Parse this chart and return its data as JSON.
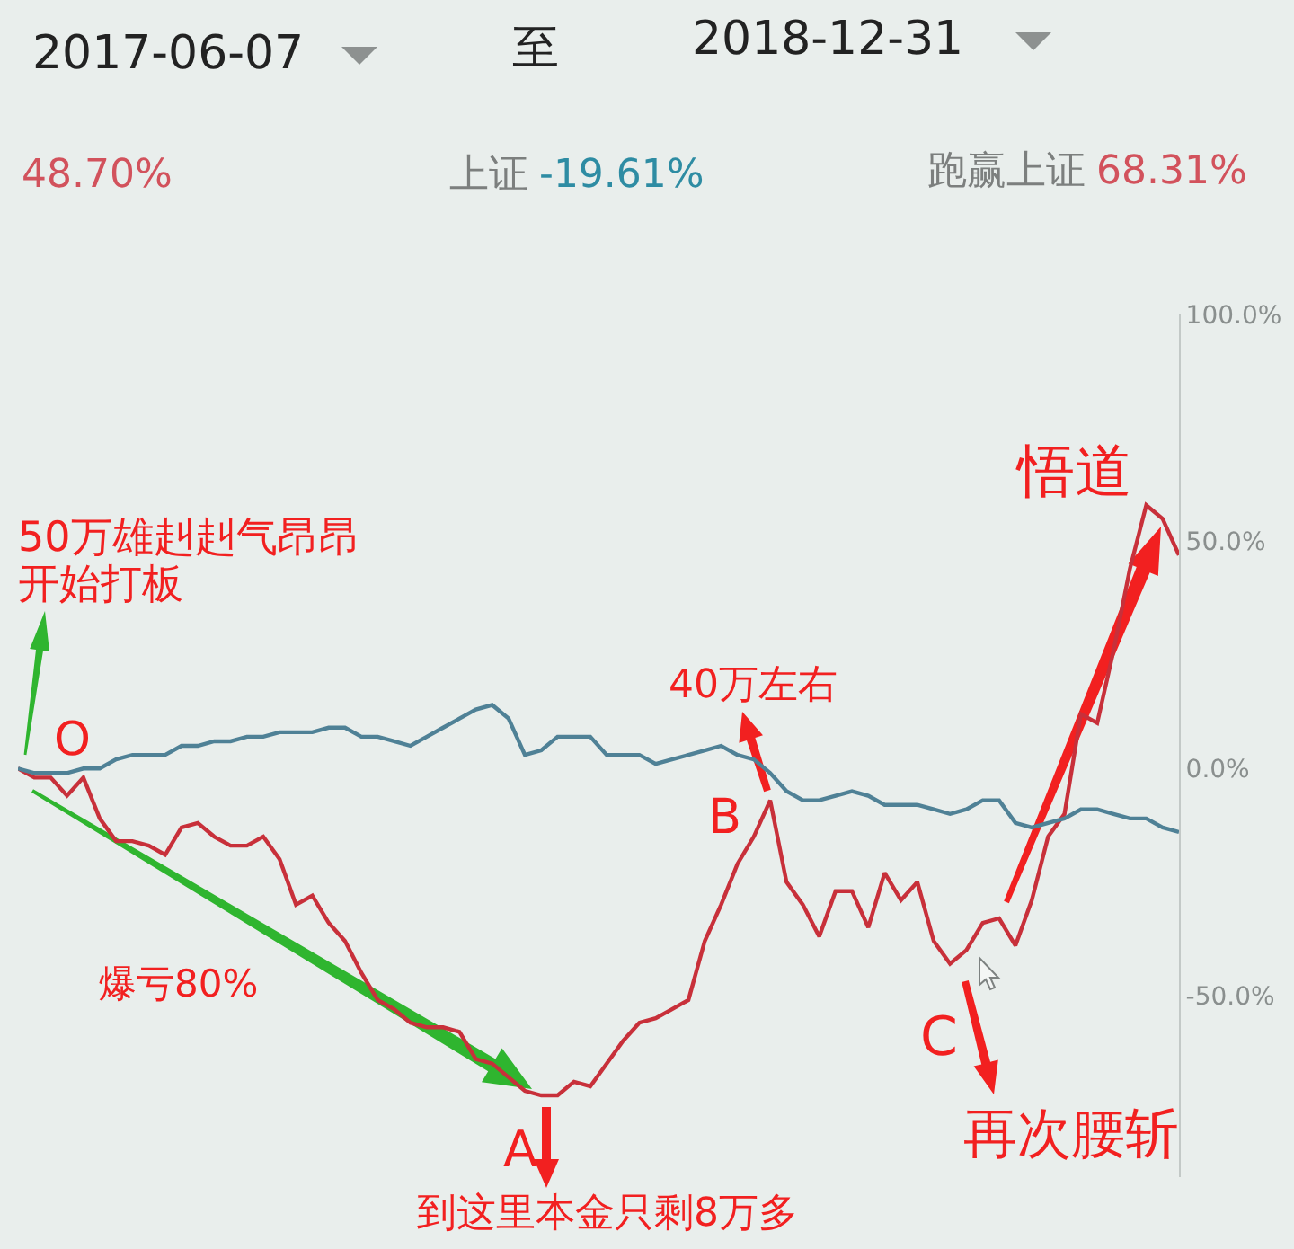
{
  "chart_data": {
    "type": "line",
    "categories": [
      null,
      null,
      null,
      null,
      null,
      null,
      null,
      null,
      null,
      null,
      null,
      null,
      null,
      null,
      null,
      null,
      null,
      null,
      null,
      null,
      null,
      null,
      null,
      null,
      null,
      null,
      null,
      null,
      null,
      null,
      null,
      null,
      null,
      null,
      null,
      null,
      null,
      null,
      null,
      null,
      null,
      null,
      null,
      null,
      null,
      null,
      null,
      null,
      null,
      null,
      null,
      null,
      null,
      null,
      null,
      null,
      null,
      null,
      null,
      null,
      null,
      null,
      null,
      null,
      null,
      null,
      null,
      null,
      null,
      null,
      null,
      null
    ],
    "series": [
      {
        "color": "#c8303a",
        "values": [
          0,
          -2,
          -2,
          -6,
          -2,
          -11,
          -16,
          -16,
          -17,
          -19,
          -13,
          -12,
          -15,
          -17,
          -17,
          -15,
          -20,
          -30,
          -28,
          -34,
          -38,
          -45,
          -51,
          -53,
          -56,
          -57,
          -57,
          -58,
          -64,
          -65,
          -68,
          -71,
          -72,
          -72,
          -69,
          -70,
          -65,
          -60,
          -56,
          -55,
          -53,
          -51,
          -38,
          -30,
          -21,
          -15,
          -7,
          -25,
          -30,
          -37,
          -27,
          -27,
          -35,
          -23,
          -29,
          -25,
          -38,
          -43,
          -40,
          -34,
          -33,
          -39,
          -29,
          -15,
          -10,
          12,
          10,
          26,
          44,
          58,
          55,
          47
        ]
      },
      {
        "color": "#4f8196",
        "values": [
          0,
          -1,
          -1,
          -1,
          0,
          0,
          2,
          3,
          3,
          3,
          5,
          5,
          6,
          6,
          7,
          7,
          8,
          8,
          8,
          9,
          9,
          7,
          7,
          6,
          5,
          7,
          9,
          11,
          13,
          14,
          11,
          3,
          4,
          7,
          7,
          7,
          3,
          3,
          3,
          1,
          2,
          3,
          4,
          5,
          3,
          2,
          -1,
          -5,
          -7,
          -7,
          -6,
          -5,
          -6,
          -8,
          -8,
          -8,
          -9,
          -10,
          -9,
          -7,
          -7,
          -12,
          -13,
          -12,
          -11,
          -9,
          -9,
          -10,
          -11,
          -11,
          -13,
          -14
        ]
      }
    ],
    "ylim": [
      -90,
      100
    ],
    "yticks": [
      {
        "value": -50,
        "label": "-50.0%"
      },
      {
        "value": 0,
        "label": "0.0%"
      },
      {
        "value": 50,
        "label": "50.0%"
      },
      {
        "value": 100,
        "label": "100.0%"
      }
    ],
    "tick_labels": "y",
    "grid": false,
    "line_style": "solid",
    "annotations": [
      "2017-06-07",
      "至",
      "2018-12-31",
      "48.70%",
      "上证",
      "-19.61%",
      "跑赢上证",
      "68.31%",
      "50万雄赳赳气昂昂",
      "开始打板",
      "O",
      "爆亏80%",
      "A",
      "到这里本金只剩8万多",
      "40万左右",
      "B",
      "C",
      "再次腰斩",
      "悟道"
    ]
  }
}
